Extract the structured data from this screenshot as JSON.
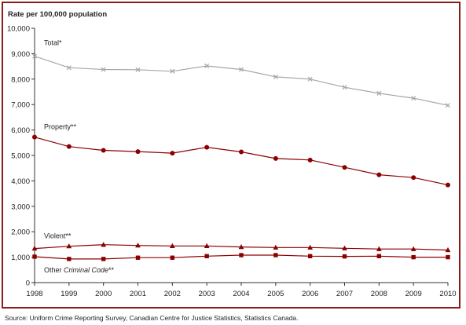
{
  "chart_data": {
    "type": "line",
    "title": "",
    "ylabel": "Rate per 100,000 population",
    "xlabel": "",
    "x": [
      "1998",
      "1999",
      "2000",
      "2001",
      "2002",
      "2003",
      "2004",
      "2005",
      "2006",
      "2007",
      "2008",
      "2009",
      "2010"
    ],
    "ylim": [
      0,
      10000
    ],
    "yticks": [
      "0",
      "1,000",
      "2,000",
      "3,000",
      "4,000",
      "5,000",
      "6,000",
      "7,000",
      "8,000",
      "9,000",
      "10,000"
    ],
    "grid": false,
    "series": [
      {
        "name": "Total*",
        "color": "#a6a6a6",
        "marker": "x",
        "values": [
          8900,
          8450,
          8380,
          8370,
          8310,
          8520,
          8380,
          8090,
          8000,
          7680,
          7440,
          7250,
          6970
        ]
      },
      {
        "name": "Property**",
        "color": "#8b0000",
        "marker": "circle",
        "values": [
          5720,
          5350,
          5200,
          5150,
          5090,
          5320,
          5140,
          4880,
          4820,
          4530,
          4240,
          4130,
          3840
        ]
      },
      {
        "name": "Violent**",
        "color": "#8b0000",
        "marker": "triangle",
        "values": [
          1340,
          1430,
          1490,
          1460,
          1440,
          1440,
          1400,
          1380,
          1380,
          1350,
          1320,
          1320,
          1280
        ]
      },
      {
        "name": "Other Criminal Code**",
        "name_plain": "Other ",
        "name_italic": "Criminal Code",
        "name_suffix": "**",
        "color": "#8b0000",
        "marker": "square",
        "values": [
          1020,
          930,
          930,
          980,
          980,
          1040,
          1080,
          1080,
          1040,
          1030,
          1040,
          1000,
          1000
        ]
      }
    ]
  },
  "source_note": "Source:  Uniform Crime Reporting Survey, Canadian Centre for Justice Statistics, Statistics Canada."
}
